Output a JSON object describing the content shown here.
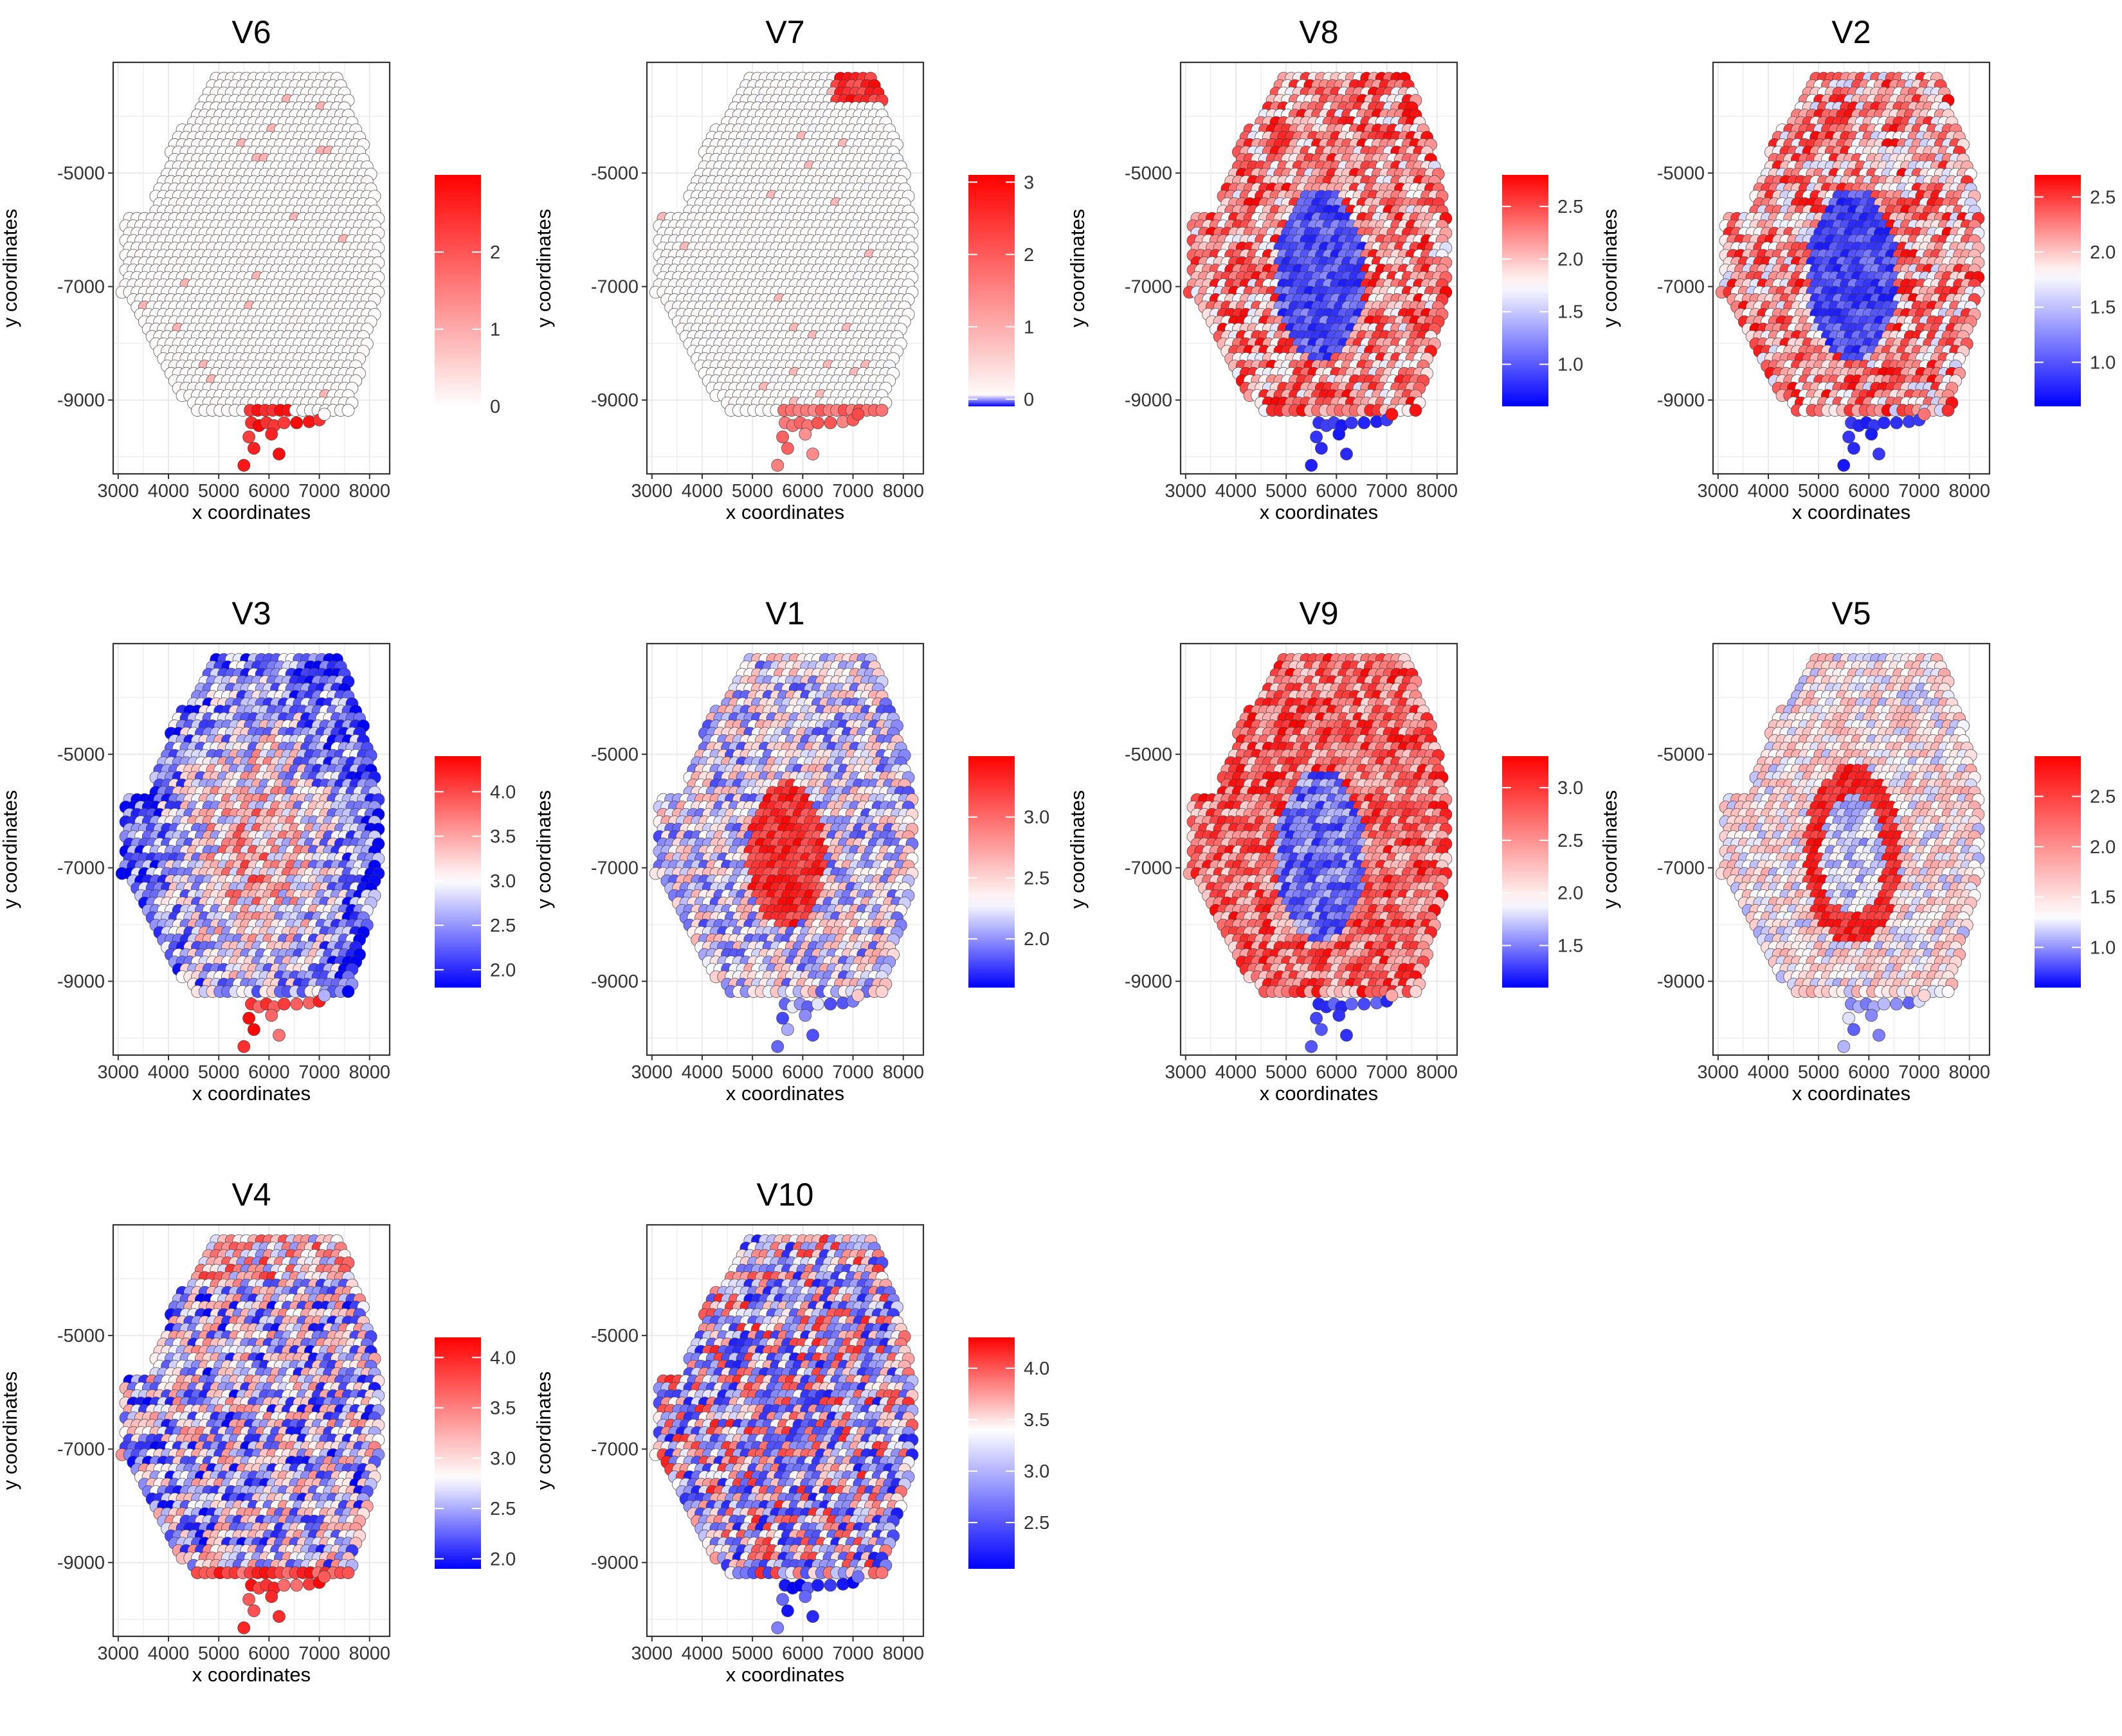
{
  "figure": {
    "xlabel": "x coordinates",
    "ylabel": "y coordinates",
    "x_ticks": [
      3000,
      4000,
      5000,
      6000,
      7000,
      8000
    ],
    "y_ticks": [
      -5000,
      -7000,
      -9000
    ],
    "xlim": [
      2900,
      8400
    ],
    "ylim": [
      -10300,
      -3050
    ],
    "colors": {
      "low": "#0000ff",
      "mid": "#ffffff",
      "high": "#ff0000",
      "spot_border": "#3a3a3a",
      "grid": "#ebebeb"
    }
  },
  "chart_data": [
    {
      "type": "scatter",
      "title": "V6",
      "xlabel": "x coordinates",
      "ylabel": "y coordinates",
      "pattern": "bottom_hotspot",
      "legend_ticks": [
        0,
        1,
        2
      ],
      "range": [
        0,
        3.0
      ],
      "mid": 0,
      "legend_position": "right",
      "grid": true
    },
    {
      "type": "scatter",
      "title": "V7",
      "xlabel": "x coordinates",
      "ylabel": "y coordinates",
      "pattern": "top_right_and_bottom",
      "legend_ticks": [
        0,
        1,
        2,
        3
      ],
      "range": [
        -0.1,
        3.1
      ],
      "mid": 0,
      "legend_position": "right",
      "grid": true
    },
    {
      "type": "scatter",
      "title": "V8",
      "xlabel": "x coordinates",
      "ylabel": "y coordinates",
      "pattern": "core_low_ring_high",
      "legend_ticks": [
        1.0,
        1.5,
        2.0,
        2.5
      ],
      "range": [
        0.6,
        2.8
      ],
      "mid": 1.75,
      "legend_position": "right",
      "grid": true
    },
    {
      "type": "scatter",
      "title": "V2",
      "xlabel": "x coordinates",
      "ylabel": "y coordinates",
      "pattern": "core_low_ring_high",
      "legend_ticks": [
        1.0,
        1.5,
        2.0,
        2.5
      ],
      "range": [
        0.6,
        2.7
      ],
      "mid": 1.8,
      "legend_position": "right",
      "grid": true
    },
    {
      "type": "scatter",
      "title": "V3",
      "xlabel": "x coordinates",
      "ylabel": "y coordinates",
      "pattern": "mixed_center_warm",
      "legend_ticks": [
        2.0,
        2.5,
        3.0,
        3.5,
        4.0
      ],
      "range": [
        1.8,
        4.4
      ],
      "mid": 3.0,
      "legend_position": "right",
      "grid": true
    },
    {
      "type": "scatter",
      "title": "V1",
      "xlabel": "x coordinates",
      "ylabel": "y coordinates",
      "pattern": "core_high",
      "legend_ticks": [
        2.0,
        2.5,
        3.0
      ],
      "range": [
        1.6,
        3.5
      ],
      "mid": 2.3,
      "legend_position": "right",
      "grid": true
    },
    {
      "type": "scatter",
      "title": "V9",
      "xlabel": "x coordinates",
      "ylabel": "y coordinates",
      "pattern": "core_low_ring_high",
      "legend_ticks": [
        1.5,
        2.0,
        2.5,
        3.0
      ],
      "range": [
        1.1,
        3.3
      ],
      "mid": 1.9,
      "legend_position": "right",
      "grid": true
    },
    {
      "type": "scatter",
      "title": "V5",
      "xlabel": "x coordinates",
      "ylabel": "y coordinates",
      "pattern": "ring_high",
      "legend_ticks": [
        1.0,
        1.5,
        2.0,
        2.5
      ],
      "range": [
        0.6,
        2.9
      ],
      "mid": 1.3,
      "legend_position": "right",
      "grid": true
    },
    {
      "type": "scatter",
      "title": "V4",
      "xlabel": "x coordinates",
      "ylabel": "y coordinates",
      "pattern": "mixed_top_bottom_warm",
      "legend_ticks": [
        2.0,
        2.5,
        3.0,
        3.5,
        4.0
      ],
      "range": [
        1.9,
        4.2
      ],
      "mid": 2.8,
      "legend_position": "right",
      "grid": true
    },
    {
      "type": "scatter",
      "title": "V10",
      "xlabel": "x coordinates",
      "ylabel": "y coordinates",
      "pattern": "mixed_inner_cool",
      "legend_ticks": [
        2.5,
        3.0,
        3.5,
        4.0
      ],
      "range": [
        2.05,
        4.3
      ],
      "mid": 3.4,
      "legend_position": "right",
      "grid": true
    }
  ]
}
